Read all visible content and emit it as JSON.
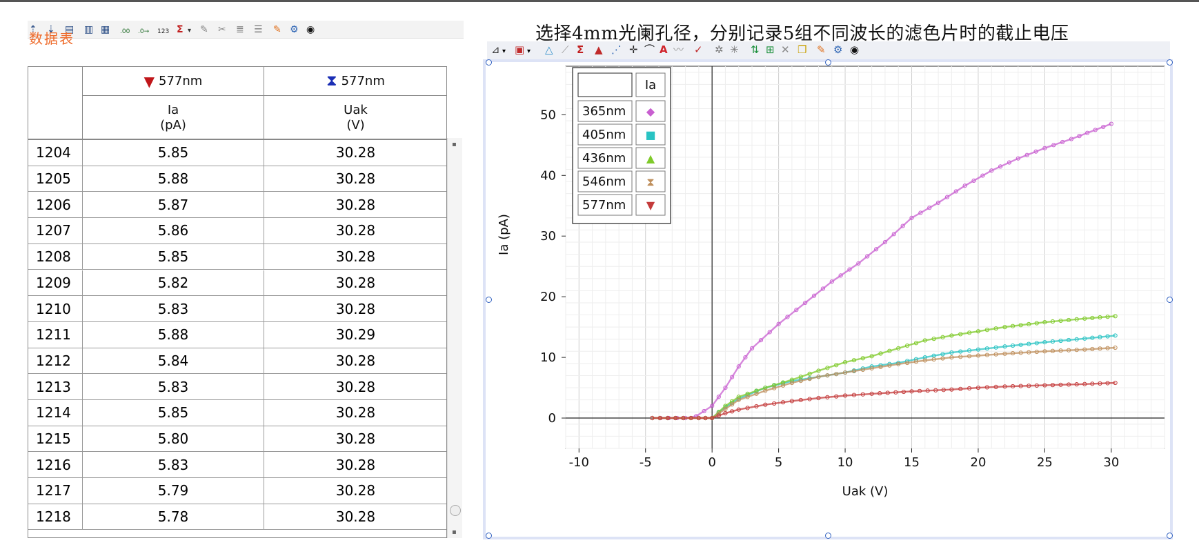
{
  "window": {
    "overlay_title": "数据表"
  },
  "left_toolbar": {
    "icons": [
      "insert-column-icon",
      "insert-row-icon",
      "table-options-icon",
      "column-a-icon",
      "column-b-icon",
      "decimal-icon",
      "decimal-shift-icon",
      "number-format-icon",
      "statistics-icon",
      "dropdown-icon",
      "edit-icon",
      "tools-icon",
      "list-icon",
      "list-alt-icon",
      "pin-icon",
      "settings-icon",
      "view-icon"
    ]
  },
  "table": {
    "columns": [
      {
        "marker": "▼",
        "marker_color": "#c0161a",
        "run": "577nm",
        "name": "Ia",
        "unit": "(pA)"
      },
      {
        "marker": "⧗",
        "marker_color": "#1b2fb5",
        "run": "577nm",
        "name": "Uak",
        "unit": "(V)"
      }
    ],
    "rows": [
      [
        "1204",
        "5.85",
        "30.28"
      ],
      [
        "1205",
        "5.88",
        "30.28"
      ],
      [
        "1206",
        "5.87",
        "30.28"
      ],
      [
        "1207",
        "5.86",
        "30.28"
      ],
      [
        "1208",
        "5.85",
        "30.28"
      ],
      [
        "1209",
        "5.82",
        "30.28"
      ],
      [
        "1210",
        "5.83",
        "30.28"
      ],
      [
        "1211",
        "5.88",
        "30.29"
      ],
      [
        "1212",
        "5.84",
        "30.28"
      ],
      [
        "1213",
        "5.83",
        "30.28"
      ],
      [
        "1214",
        "5.85",
        "30.28"
      ],
      [
        "1215",
        "5.80",
        "30.28"
      ],
      [
        "1216",
        "5.83",
        "30.28"
      ],
      [
        "1217",
        "5.79",
        "30.28"
      ],
      [
        "1218",
        "5.78",
        "30.28"
      ]
    ]
  },
  "graph": {
    "title": "选择4mm光阑孔径，分别记录5组不同波长的滤色片时的截止电压"
  },
  "chart_data": {
    "type": "scatter",
    "title": "选择4mm光阑孔径，分别记录5组不同波长的滤色片时的截止电压",
    "xlabel": "Uak (V)",
    "ylabel": "Ia (pA)",
    "xlim": [
      -11,
      34
    ],
    "ylim": [
      -5,
      58
    ],
    "xticks": [
      "-10",
      "-5",
      "0",
      "5",
      "10",
      "15",
      "20",
      "25",
      "30"
    ],
    "yticks": [
      "0",
      "10",
      "20",
      "30",
      "40",
      "50"
    ],
    "grid": true,
    "legend_header": "Ia",
    "series": [
      {
        "name": "365nm",
        "color": "#c85fd0",
        "marker": "◆",
        "points": [
          [
            -4.5,
            0
          ],
          [
            -2,
            0
          ],
          [
            -1.2,
            0.3
          ],
          [
            0,
            2
          ],
          [
            1,
            5
          ],
          [
            2,
            8.5
          ],
          [
            3,
            11.5
          ],
          [
            5,
            15.5
          ],
          [
            7,
            19
          ],
          [
            9,
            22.5
          ],
          [
            11,
            25.5
          ],
          [
            13,
            29
          ],
          [
            15,
            33
          ],
          [
            17,
            35.5
          ],
          [
            19,
            38.3
          ],
          [
            21,
            40.8
          ],
          [
            23,
            42.8
          ],
          [
            25,
            44.5
          ],
          [
            27,
            46
          ],
          [
            30,
            48.5
          ]
        ]
      },
      {
        "name": "405nm",
        "color": "#29c3c3",
        "marker": "■",
        "points": [
          [
            -4.5,
            0
          ],
          [
            -1,
            0
          ],
          [
            0,
            0
          ],
          [
            1,
            1.8
          ],
          [
            2,
            3.2
          ],
          [
            4,
            5
          ],
          [
            6,
            6.1
          ],
          [
            8,
            6.8
          ],
          [
            10,
            7.5
          ],
          [
            12,
            8.5
          ],
          [
            14,
            9.1
          ],
          [
            16,
            10
          ],
          [
            18,
            10.8
          ],
          [
            20,
            11.3
          ],
          [
            22,
            11.8
          ],
          [
            25,
            12.5
          ],
          [
            28,
            13.1
          ],
          [
            30.3,
            13.6
          ]
        ]
      },
      {
        "name": "436nm",
        "color": "#7fca2a",
        "marker": "▲",
        "points": [
          [
            -4.5,
            0
          ],
          [
            -1,
            0
          ],
          [
            0,
            0
          ],
          [
            1,
            2
          ],
          [
            2,
            3.5
          ],
          [
            4,
            5
          ],
          [
            6,
            6.3
          ],
          [
            8,
            7.8
          ],
          [
            10,
            9.2
          ],
          [
            12,
            10.2
          ],
          [
            14,
            11.5
          ],
          [
            16,
            12.8
          ],
          [
            18,
            13.6
          ],
          [
            20,
            14.3
          ],
          [
            22,
            15
          ],
          [
            25,
            15.8
          ],
          [
            28,
            16.4
          ],
          [
            30.3,
            16.8
          ]
        ]
      },
      {
        "name": "546nm",
        "color": "#bf8f5c",
        "marker": "⧗",
        "points": [
          [
            -4.5,
            0
          ],
          [
            -1,
            0
          ],
          [
            0,
            0
          ],
          [
            1,
            1.5
          ],
          [
            2,
            3
          ],
          [
            4,
            4.5
          ],
          [
            6,
            5.8
          ],
          [
            8,
            6.8
          ],
          [
            10,
            7.5
          ],
          [
            12,
            8.2
          ],
          [
            14,
            8.9
          ],
          [
            16,
            9.5
          ],
          [
            18,
            10
          ],
          [
            20,
            10.3
          ],
          [
            22,
            10.6
          ],
          [
            25,
            11
          ],
          [
            28,
            11.3
          ],
          [
            30.3,
            11.6
          ]
        ]
      },
      {
        "name": "577nm",
        "color": "#c43b3b",
        "marker": "▼",
        "points": [
          [
            -4.5,
            0
          ],
          [
            -1,
            0
          ],
          [
            0,
            0
          ],
          [
            1,
            0.8
          ],
          [
            2,
            1.4
          ],
          [
            4,
            2.2
          ],
          [
            6,
            2.8
          ],
          [
            8,
            3.3
          ],
          [
            10,
            3.7
          ],
          [
            12,
            4
          ],
          [
            15,
            4.4
          ],
          [
            18,
            4.7
          ],
          [
            20,
            5
          ],
          [
            22,
            5.2
          ],
          [
            25,
            5.4
          ],
          [
            28,
            5.6
          ],
          [
            30.3,
            5.8
          ]
        ]
      }
    ]
  }
}
